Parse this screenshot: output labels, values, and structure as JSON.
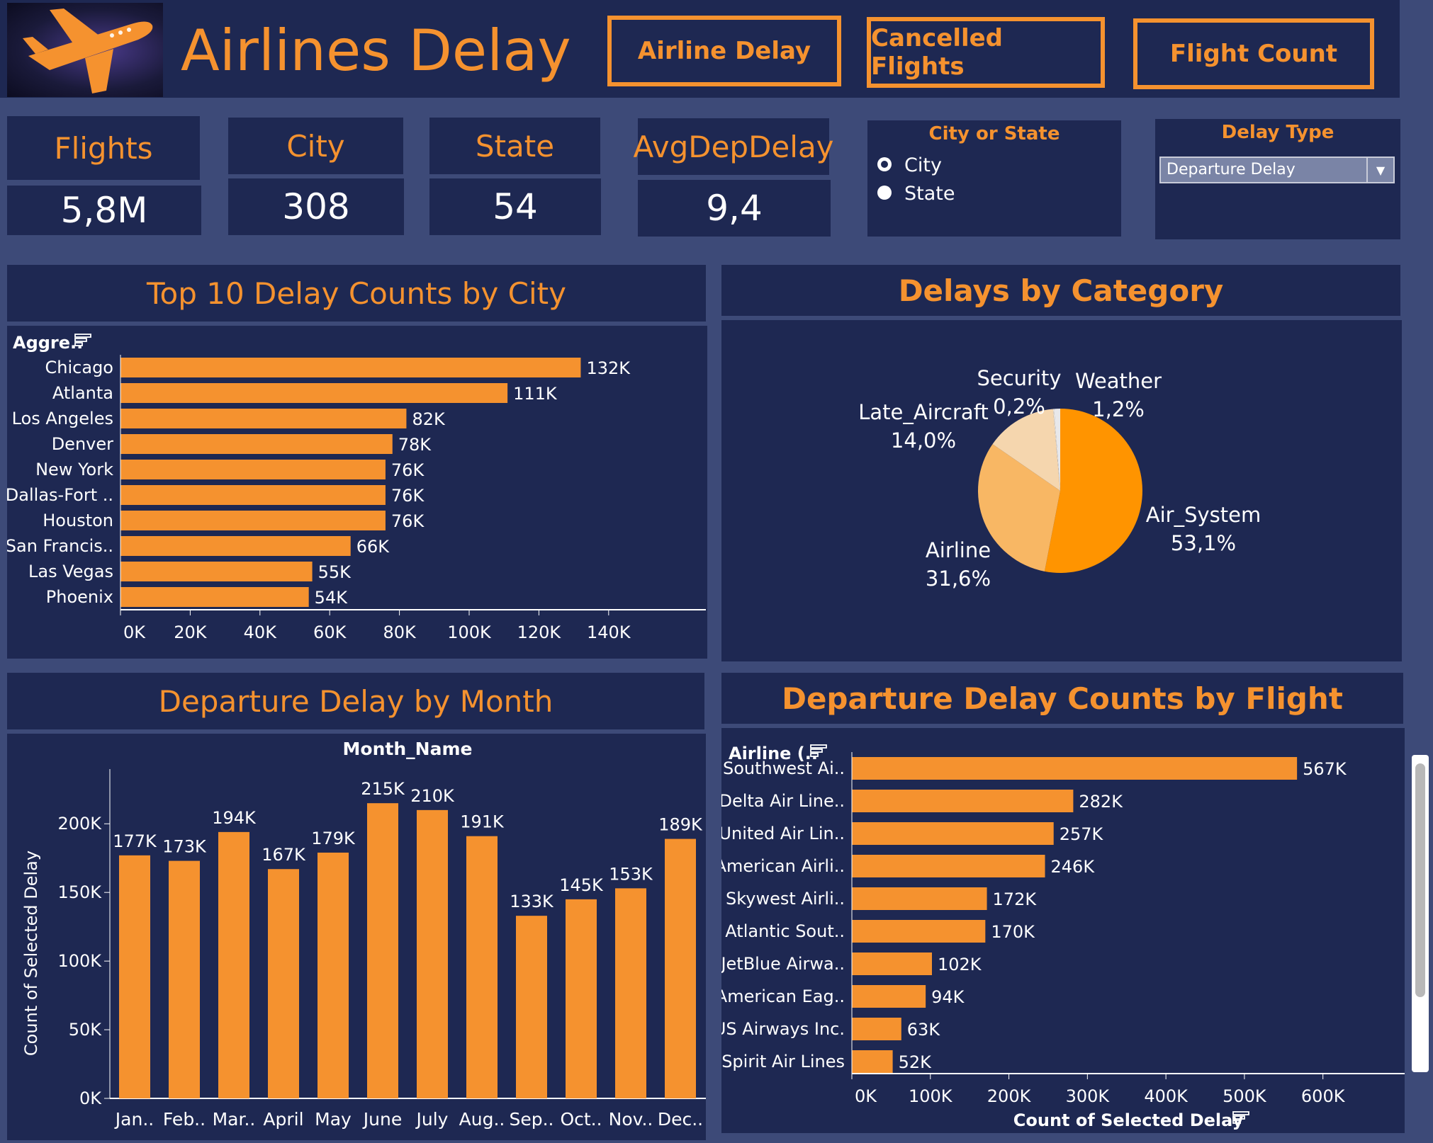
{
  "header": {
    "title": "Airlines Delay",
    "nav": [
      {
        "label": "Airline Delay"
      },
      {
        "label": "Cancelled Flights"
      },
      {
        "label": "Flight Count"
      }
    ]
  },
  "kpis": [
    {
      "label": "Flights",
      "value": "5,8M"
    },
    {
      "label": "City",
      "value": "308"
    },
    {
      "label": "State",
      "value": "54"
    },
    {
      "label": "AvgDepDelay",
      "value": "9,4"
    }
  ],
  "city_or_state": {
    "title": "City or State",
    "options": [
      {
        "label": "City",
        "selected": true
      },
      {
        "label": "State",
        "selected": false
      }
    ]
  },
  "delay_type": {
    "title": "Delay Type",
    "value": "Departure Delay"
  },
  "colors": {
    "panel": "#1e2852",
    "background": "#3d4a78",
    "accent": "#f5922f"
  },
  "icons": {
    "logo": "airplane-icon",
    "sort": "sort-icon",
    "dropdown": "chevron-down-icon"
  },
  "sections": {
    "city_title": "Top 10  Delay Counts by City",
    "category_title": "Delays by Category",
    "month_title": "Departure Delay  by Month",
    "flight_title": "Departure Delay Counts by Flight"
  },
  "chart_data": [
    {
      "type": "bar",
      "orientation": "horizontal",
      "title": "Top 10  Delay Counts by City",
      "header_label": "Aggre..",
      "categories": [
        "Chicago",
        "Atlanta",
        "Los Angeles",
        "Denver",
        "New York",
        "Dallas-Fort ..",
        "Houston",
        "San Francis..",
        "Las Vegas",
        "Phoenix"
      ],
      "values": [
        132000,
        111000,
        82000,
        78000,
        76000,
        76000,
        76000,
        66000,
        55000,
        54000
      ],
      "value_labels": [
        "132K",
        "111K",
        "82K",
        "78K",
        "76K",
        "76K",
        "76K",
        "66K",
        "55K",
        "54K"
      ],
      "xlim": [
        0,
        150000
      ],
      "ticks": [
        "0K",
        "20K",
        "40K",
        "60K",
        "80K",
        "100K",
        "120K",
        "140K"
      ],
      "tick_values": [
        0,
        20000,
        40000,
        60000,
        80000,
        100000,
        120000,
        140000
      ]
    },
    {
      "type": "pie",
      "title": "Delays by Category",
      "slices": [
        {
          "name": "Air_System",
          "label": "53,1%",
          "value": 53.1,
          "color": "#ff9400"
        },
        {
          "name": "Airline",
          "label": "31,6%",
          "value": 31.6,
          "color": "#f8b764"
        },
        {
          "name": "Late_Aircraft",
          "label": "14,0%",
          "value": 14.0,
          "color": "#f5d6ae"
        },
        {
          "name": "Security",
          "label": "0,2%",
          "value": 0.2,
          "color": "#f0e6d6"
        },
        {
          "name": "Weather",
          "label": "1,2%",
          "value": 1.2,
          "color": "#e8e8ea"
        }
      ]
    },
    {
      "type": "bar",
      "orientation": "vertical",
      "title": "Departure Delay  by Month",
      "xlabel": "Month_Name",
      "ylabel": "Count of Selected Delay",
      "categories": [
        "Jan..",
        "Feb..",
        "Mar..",
        "April",
        "May",
        "June",
        "July",
        "Aug..",
        "Sep..",
        "Oct..",
        "Nov..",
        "Dec.."
      ],
      "values": [
        177000,
        173000,
        194000,
        167000,
        179000,
        215000,
        210000,
        191000,
        133000,
        145000,
        153000,
        189000
      ],
      "value_labels": [
        "177K",
        "173K",
        "194K",
        "167K",
        "179K",
        "215K",
        "210K",
        "191K",
        "133K",
        "145K",
        "153K",
        "189K"
      ],
      "ylim": [
        0,
        245000
      ],
      "ticks": [
        "0K",
        "50K",
        "100K",
        "150K",
        "200K"
      ],
      "tick_values": [
        0,
        50000,
        100000,
        150000,
        200000
      ]
    },
    {
      "type": "bar",
      "orientation": "horizontal",
      "title": "Departure Delay Counts by Flight",
      "header_label": "Airline (..",
      "xlabel": "Count of Selected Delay",
      "categories": [
        "Southwest Ai..",
        "Delta Air Line..",
        "United Air Lin..",
        "American Airli..",
        "Skywest Airli..",
        "Atlantic Sout..",
        "JetBlue Airwa..",
        "American Eag..",
        "US Airways Inc.",
        "Spirit Air Lines"
      ],
      "values": [
        567000,
        282000,
        257000,
        246000,
        172000,
        170000,
        102000,
        94000,
        63000,
        52000
      ],
      "value_labels": [
        "567K",
        "282K",
        "257K",
        "246K",
        "172K",
        "170K",
        "102K",
        "94K",
        "63K",
        "52K"
      ],
      "xlim": [
        0,
        640000
      ],
      "ticks": [
        "0K",
        "100K",
        "200K",
        "300K",
        "400K",
        "500K",
        "600K"
      ],
      "tick_values": [
        0,
        100000,
        200000,
        300000,
        400000,
        500000,
        600000
      ]
    }
  ]
}
